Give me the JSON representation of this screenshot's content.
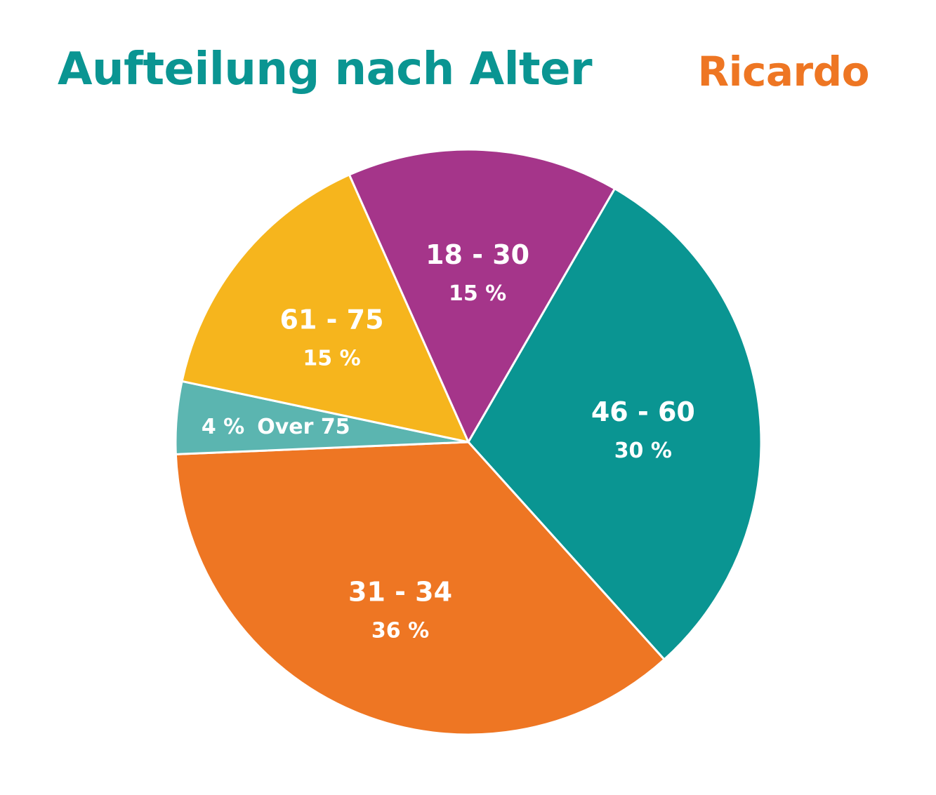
{
  "title": "Aufteilung nach Alter",
  "brand": "Ricardo",
  "chart_data": {
    "type": "pie",
    "title": "Aufteilung nach Alter",
    "slices": [
      {
        "name": "18 - 30",
        "value": 15,
        "label": "15 %",
        "color": "#a5358a"
      },
      {
        "name": "46 - 60",
        "value": 30,
        "label": "30 %",
        "color": "#0a9592"
      },
      {
        "name": "31 - 34",
        "value": 36,
        "label": "36 %",
        "color": "#ee7623"
      },
      {
        "name": "Over 75",
        "value": 4,
        "label": "4 %",
        "color": "#5bb5b0"
      },
      {
        "name": "61 - 75",
        "value": 15,
        "label": "15 %",
        "color": "#f6b51d"
      }
    ],
    "start_angle_deg": -24,
    "legend": "none"
  }
}
